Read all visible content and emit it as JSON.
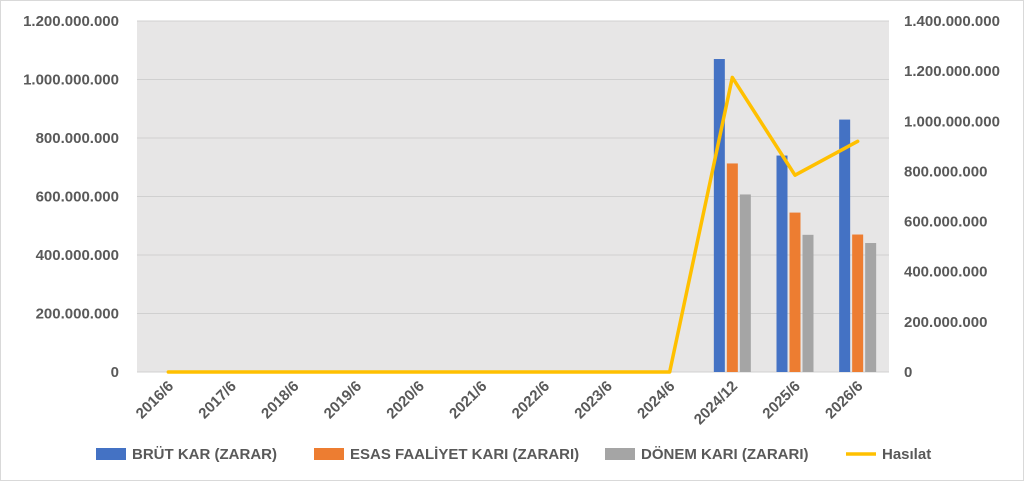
{
  "chart_data": {
    "type": "bar",
    "categories": [
      "2016/6",
      "2017/6",
      "2018/6",
      "2019/6",
      "2020/6",
      "2021/6",
      "2022/6",
      "2023/6",
      "2024/6",
      "2024/12",
      "2025/6",
      "2026/6"
    ],
    "series": [
      {
        "name": "BRÜT KAR (ZARAR)",
        "type": "bar",
        "axis": "left",
        "color": "#4472C4",
        "values": [
          0,
          0,
          0,
          0,
          0,
          0,
          0,
          0,
          0,
          1070000000,
          740000000,
          863000000
        ]
      },
      {
        "name": "ESAS FAALİYET KARI (ZARARI)",
        "type": "bar",
        "axis": "left",
        "color": "#ED7D31",
        "values": [
          0,
          0,
          0,
          0,
          0,
          0,
          0,
          0,
          0,
          713000000,
          545000000,
          470000000
        ]
      },
      {
        "name": "DÖNEM KARI (ZARARI)",
        "type": "bar",
        "axis": "left",
        "color": "#A5A5A5",
        "values": [
          0,
          0,
          0,
          0,
          0,
          0,
          0,
          0,
          0,
          607000000,
          469000000,
          441000000
        ]
      },
      {
        "name": "Hasılat",
        "type": "line",
        "axis": "right",
        "color": "#FFC000",
        "values": [
          0,
          0,
          0,
          0,
          0,
          0,
          0,
          0,
          0,
          1175000000,
          785000000,
          920000000
        ]
      }
    ],
    "y_left": {
      "ylim": [
        0,
        1200000000
      ],
      "ticks": [
        0,
        200000000,
        400000000,
        600000000,
        800000000,
        1000000000,
        1200000000
      ],
      "tick_labels": [
        "0",
        "200.000.000",
        "400.000.000",
        "600.000.000",
        "800.000.000",
        "1.000.000.000",
        "1.200.000.000"
      ]
    },
    "y_right": {
      "ylim": [
        0,
        1400000000
      ],
      "ticks": [
        0,
        200000000,
        400000000,
        600000000,
        800000000,
        1000000000,
        1200000000,
        1400000000
      ],
      "tick_labels": [
        "0",
        "200.000.000",
        "400.000.000",
        "600.000.000",
        "800.000.000",
        "1.000.000.000",
        "1.200.000.000",
        "1.400.000.000"
      ]
    },
    "grid": true,
    "legend_position": "bottom"
  }
}
